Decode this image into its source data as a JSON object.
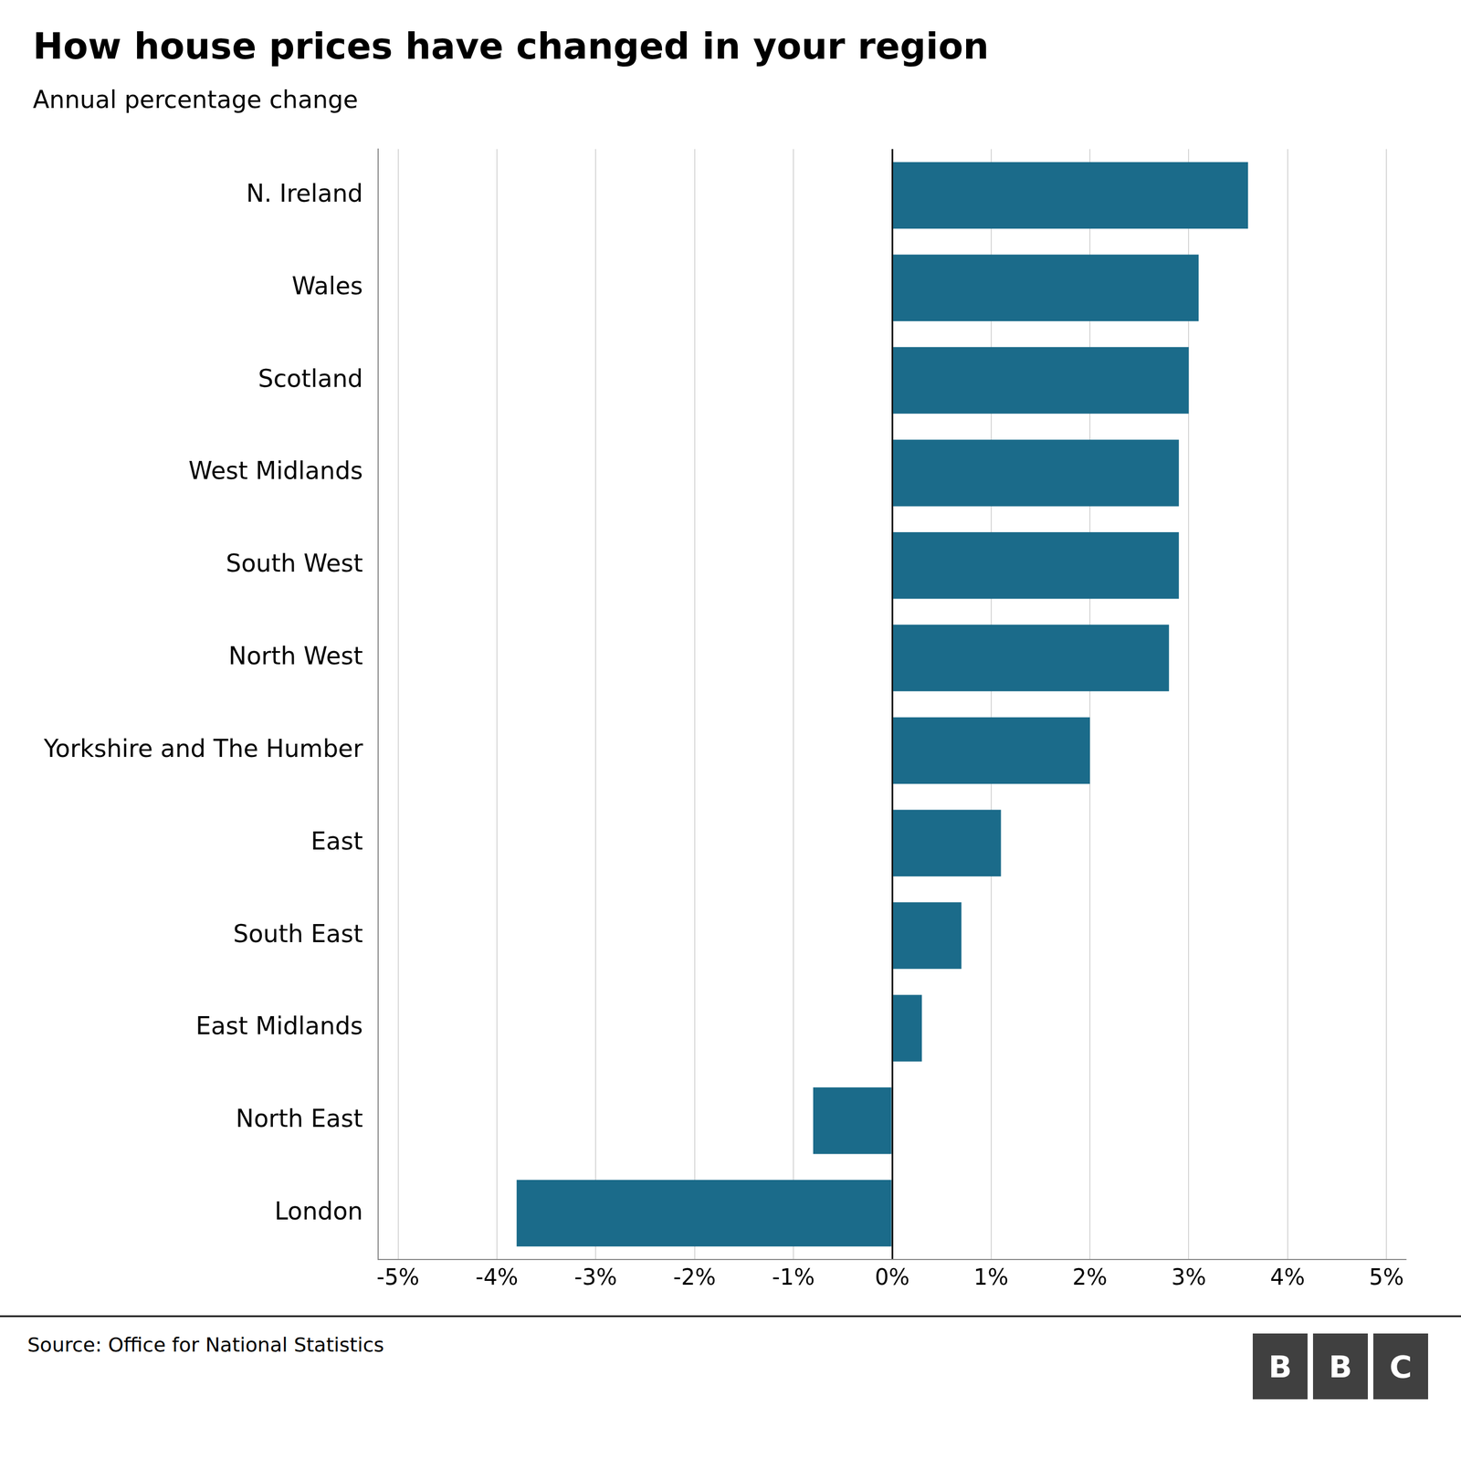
{
  "chart_data": {
    "type": "bar",
    "orientation": "horizontal",
    "title": "How house prices have changed in your region",
    "subtitle": "Annual percentage change",
    "source": "Source: Office for National Statistics",
    "logo": "BBC",
    "categories": [
      "London",
      "North East",
      "East Midlands",
      "South East",
      "East",
      "Yorkshire and The Humber",
      "North West",
      "South West",
      "West Midlands",
      "Scotland",
      "Wales",
      "N. Ireland"
    ],
    "values": [
      -3.8,
      -0.8,
      0.3,
      0.7,
      1.1,
      2.0,
      2.8,
      2.9,
      2.9,
      3.0,
      3.1,
      3.6
    ],
    "color": "#1b6b8a",
    "xlim": [
      -5.2,
      5.2
    ],
    "xticks": [
      {
        "value": -5,
        "label": "-5%"
      },
      {
        "value": -4,
        "label": "-4%"
      },
      {
        "value": -3,
        "label": "-3%"
      },
      {
        "value": -2,
        "label": "-2%"
      },
      {
        "value": -1,
        "label": "-1%"
      },
      {
        "value": 0,
        "label": "0%"
      },
      {
        "value": 1,
        "label": "1%"
      },
      {
        "value": 2,
        "label": "2%"
      },
      {
        "value": 3,
        "label": "3%"
      },
      {
        "value": 4,
        "label": "4%"
      },
      {
        "value": 5,
        "label": "5%"
      }
    ],
    "grid": true
  }
}
